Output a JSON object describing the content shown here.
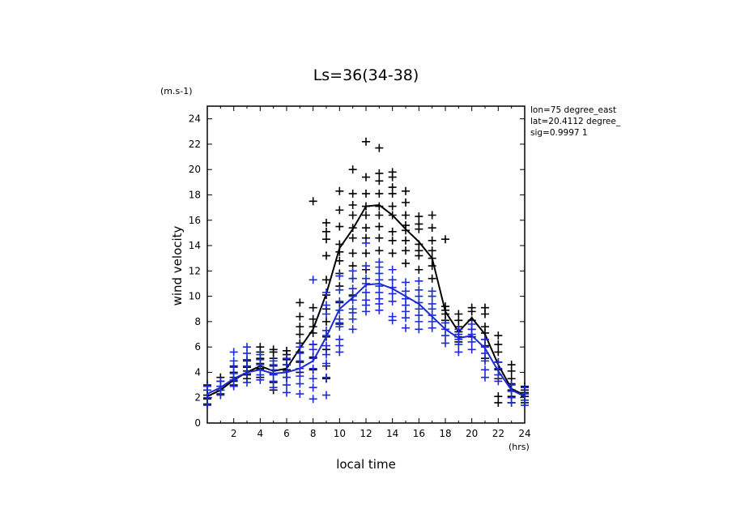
{
  "chart_data": {
    "type": "scatter",
    "title": "Ls=36(34-38)",
    "xlabel": "local time",
    "ylabel": "wind velocity",
    "yunit": "(m.s-1)",
    "xunit": "(hrs)",
    "xlim": [
      0,
      24
    ],
    "ylim": [
      0,
      25
    ],
    "xticks": [
      2,
      4,
      6,
      8,
      10,
      12,
      14,
      16,
      18,
      20,
      22,
      24
    ],
    "yticks": [
      0,
      2,
      4,
      6,
      8,
      10,
      12,
      14,
      16,
      18,
      20,
      22,
      24
    ],
    "info": [
      "lon=75 degree_east",
      "lat=20.4112 degree_",
      "sig=0.9997 1"
    ],
    "grid": false,
    "series": [
      {
        "color": "#000000",
        "mean_line": {
          "x": [
            0,
            1,
            2,
            3,
            4,
            5,
            6,
            7,
            8,
            9,
            10,
            11,
            12,
            13,
            14,
            15,
            16,
            17,
            18,
            19,
            20,
            21,
            22,
            23,
            24
          ],
          "y": [
            2.1,
            2.6,
            3.4,
            4.0,
            4.5,
            4.1,
            4.3,
            5.9,
            7.4,
            10.2,
            13.8,
            15.3,
            17.1,
            17.2,
            16.4,
            15.3,
            14.3,
            13.0,
            8.8,
            7.2,
            8.3,
            7.0,
            4.6,
            2.7,
            2.2
          ]
        },
        "points": {
          "0": [
            1.5,
            2.2,
            2.6,
            3.0,
            1.9
          ],
          "1": [
            2.3,
            2.6,
            2.9,
            3.3,
            3.6
          ],
          "2": [
            3.0,
            3.3,
            3.6,
            4.0,
            4.5
          ],
          "3": [
            3.5,
            3.8,
            4.1,
            4.4,
            4.9
          ],
          "4": [
            3.6,
            4.3,
            4.7,
            5.1,
            5.6,
            6.0
          ],
          "5": [
            2.6,
            3.2,
            3.9,
            4.5,
            5.1,
            5.6,
            5.8
          ],
          "6": [
            3.6,
            4.2,
            4.6,
            5.0,
            5.4,
            5.7
          ],
          "7": [
            4.0,
            4.8,
            5.6,
            6.3,
            7.0,
            7.6,
            8.4,
            9.5
          ],
          "8": [
            4.2,
            5.2,
            6.2,
            7.1,
            7.6,
            8.2,
            9.1,
            17.5
          ],
          "9": [
            3.5,
            4.5,
            5.8,
            6.8,
            8.0,
            9.0,
            10.1,
            11.3,
            13.2,
            14.5,
            15.1,
            15.8
          ],
          "10": [
            7.8,
            9.5,
            10.8,
            11.8,
            12.8,
            13.5,
            14.1,
            15.5,
            16.8,
            18.3
          ],
          "11": [
            10.1,
            11.4,
            12.4,
            13.4,
            14.6,
            15.4,
            16.4,
            17.2,
            18.1,
            20.0
          ],
          "12": [
            12.1,
            13.4,
            14.6,
            15.4,
            16.4,
            17.1,
            18.1,
            19.4,
            22.2
          ],
          "13": [
            13.6,
            14.6,
            15.5,
            16.4,
            17.1,
            18.1,
            19.1,
            19.7,
            21.7
          ],
          "14": [
            13.4,
            14.4,
            15.1,
            16.4,
            17.1,
            18.1,
            18.6,
            19.4,
            19.8
          ],
          "15": [
            12.6,
            13.6,
            14.4,
            15.2,
            15.6,
            16.4,
            17.4,
            18.3
          ],
          "16": [
            12.1,
            13.2,
            13.6,
            14.1,
            15.3,
            15.7,
            16.3
          ],
          "17": [
            11.4,
            12.4,
            13.0,
            13.6,
            14.4,
            15.4,
            16.4
          ],
          "18": [
            8.1,
            8.6,
            8.9,
            9.2,
            14.5
          ],
          "19": [
            6.4,
            6.8,
            7.2,
            7.6,
            8.1,
            8.6
          ],
          "20": [
            6.8,
            7.4,
            8.1,
            8.8,
            9.1
          ],
          "21": [
            5.1,
            6.1,
            6.6,
            7.1,
            7.6,
            8.6,
            9.1
          ],
          "22": [
            1.6,
            2.1,
            3.5,
            4.2,
            4.8,
            5.6,
            6.2,
            6.9
          ],
          "23": [
            1.6,
            2.1,
            2.6,
            3.1,
            3.5,
            4.1,
            4.6
          ],
          "24": [
            1.6,
            2.1,
            2.4,
            2.6,
            2.9
          ]
        }
      },
      {
        "color": "#1c2bd4",
        "mean_line": {
          "x": [
            0,
            1,
            2,
            3,
            4,
            5,
            6,
            7,
            8,
            9,
            10,
            11,
            12,
            13,
            14,
            15,
            16,
            17,
            18,
            19,
            20,
            21,
            22,
            23,
            24
          ],
          "y": [
            2.3,
            2.8,
            3.5,
            4.0,
            4.2,
            3.9,
            4.0,
            4.3,
            4.9,
            6.8,
            9.0,
            9.9,
            10.9,
            11.0,
            10.6,
            10.0,
            9.4,
            8.4,
            7.4,
            6.7,
            6.9,
            5.9,
            4.1,
            2.6,
            2.1
          ]
        },
        "points": {
          "0": [
            1.4,
            2.0,
            2.6,
            2.9
          ],
          "1": [
            2.2,
            2.6,
            2.9,
            3.3
          ],
          "2": [
            2.9,
            3.4,
            3.9,
            4.4,
            4.9,
            5.6
          ],
          "3": [
            3.2,
            3.9,
            4.5,
            5.0,
            5.5,
            6.0
          ],
          "4": [
            3.4,
            3.8,
            4.2,
            4.6,
            5.0,
            5.4
          ],
          "5": [
            2.8,
            3.3,
            3.8,
            4.2,
            4.6,
            4.9
          ],
          "6": [
            2.4,
            3.0,
            3.6,
            4.1,
            4.6,
            5.1
          ],
          "7": [
            2.3,
            3.1,
            3.7,
            4.3,
            4.9,
            5.5,
            6.0
          ],
          "8": [
            1.9,
            2.8,
            3.5,
            4.3,
            5.1,
            5.8,
            6.2,
            11.3
          ],
          "9": [
            2.2,
            3.6,
            4.7,
            5.4,
            6.1,
            6.9,
            7.3,
            8.6,
            9.3,
            10.3
          ],
          "10": [
            5.6,
            6.1,
            6.6,
            7.6,
            7.9,
            8.2,
            8.9,
            9.6,
            10.5,
            11.6
          ],
          "11": [
            7.4,
            8.2,
            8.7,
            9.0,
            9.7,
            10.0,
            10.6,
            11.4,
            12.0
          ],
          "12": [
            8.8,
            9.3,
            9.7,
            10.3,
            11.0,
            11.4,
            12.4,
            14.2
          ],
          "13": [
            8.9,
            9.4,
            9.8,
            10.3,
            10.8,
            11.3,
            11.8,
            12.3,
            12.7
          ],
          "14": [
            8.1,
            8.4,
            9.6,
            10.2,
            10.7,
            11.3,
            12.1
          ],
          "15": [
            7.5,
            8.3,
            8.8,
            9.3,
            9.8,
            10.4,
            11.1
          ],
          "16": [
            7.4,
            8.0,
            8.5,
            9.0,
            9.5,
            10.0,
            10.5,
            11.2
          ],
          "17": [
            7.5,
            8.0,
            8.5,
            9.0,
            9.4,
            10.0,
            10.4
          ],
          "18": [
            6.3,
            6.9,
            7.4,
            7.9
          ],
          "19": [
            5.6,
            6.2,
            6.6,
            7.0,
            7.4
          ],
          "20": [
            5.8,
            6.4,
            7.0,
            7.4,
            7.8
          ],
          "21": [
            3.6,
            4.2,
            4.9,
            5.5,
            6.0,
            6.6
          ],
          "22": [
            3.3,
            3.8,
            4.3,
            4.8
          ],
          "23": [
            1.6,
            2.0,
            2.5,
            3.0
          ],
          "24": [
            1.4,
            1.8,
            2.3,
            2.8
          ]
        }
      }
    ]
  }
}
